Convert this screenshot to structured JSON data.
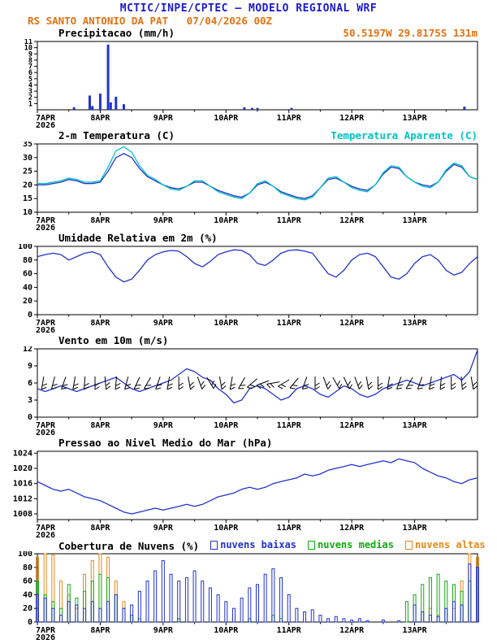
{
  "header": {
    "title": "MCTIC/INPE/CPTEC — MODELO REGIONAL WRF",
    "subtitle": "RS SANTO ANTONIO DA PAT   07/04/2026 00Z",
    "location": "50.5197W 29.8175S 131m"
  },
  "colors": {
    "header_blue": "#1a1acd",
    "orange": "#e07212",
    "line_blue": "#2233cc",
    "cyan": "#00c3c3",
    "green": "#11aa11",
    "cloud_orange": "#e2891e",
    "black": "#000000"
  },
  "time_axis": {
    "range": [
      0,
      168
    ],
    "tick_hours": [
      0,
      24,
      48,
      72,
      96,
      120,
      144
    ],
    "tick_labels": [
      "7APR",
      "8APR",
      "9APR",
      "10APR",
      "11APR",
      "12APR",
      "13APR"
    ],
    "year": "2026",
    "sample_hours": [
      0,
      3,
      6,
      9,
      12,
      15,
      18,
      21,
      24,
      27,
      30,
      33,
      36,
      39,
      42,
      45,
      48,
      51,
      54,
      57,
      60,
      63,
      66,
      69,
      72,
      75,
      78,
      81,
      84,
      87,
      90,
      93,
      96,
      99,
      102,
      105,
      108,
      111,
      114,
      117,
      120,
      123,
      126,
      129,
      132,
      135,
      138,
      141,
      144,
      147,
      150,
      153,
      156,
      159,
      162,
      165,
      168
    ]
  },
  "chart_data": [
    {
      "type": "bar",
      "title": "Precipitacao (mm/h)",
      "ylim": [
        0,
        11
      ],
      "yticks": [
        1,
        2,
        3,
        4,
        5,
        6,
        7,
        8,
        9,
        10,
        11
      ],
      "bar_color": "#2233cc",
      "x_hours": [
        14,
        20,
        21,
        24,
        27,
        28,
        30,
        33,
        79,
        82,
        84,
        97,
        163
      ],
      "values": [
        0.4,
        2.3,
        0.6,
        2.6,
        10.5,
        1.2,
        2.1,
        0.9,
        0.4,
        0.3,
        0.3,
        0.3,
        0.5
      ]
    },
    {
      "type": "line",
      "title": "2-m Temperatura (C)",
      "ylim": [
        10,
        35
      ],
      "yticks": [
        10,
        15,
        20,
        25,
        30,
        35
      ],
      "series": [
        {
          "name": "2-m Temperatura (C)",
          "color": "#2233cc",
          "values": [
            20,
            20,
            20.5,
            21,
            22,
            21.5,
            20.5,
            20.5,
            21,
            25,
            30,
            31.5,
            30,
            26,
            23,
            21.5,
            20,
            19,
            18.5,
            19.5,
            21,
            21,
            19.5,
            18,
            17,
            16,
            15.5,
            17,
            20,
            21,
            19.5,
            17.5,
            16.5,
            15.5,
            15,
            16,
            19,
            22,
            22.5,
            21,
            19.5,
            18.5,
            18,
            20,
            24,
            26.5,
            26,
            23,
            21,
            20,
            19.5,
            21,
            25,
            27.5,
            26.5,
            23,
            22
          ]
        },
        {
          "name": "Temperatura Aparente (C)",
          "color": "#00c3c3",
          "values": [
            20.5,
            20.5,
            21,
            21.5,
            22.5,
            22,
            21,
            21,
            21.5,
            26.5,
            32.5,
            34,
            32,
            27,
            23.5,
            22,
            20,
            18.5,
            18,
            19.5,
            21.5,
            21.5,
            19.5,
            17.5,
            16.5,
            15.5,
            15,
            17,
            20.5,
            21.5,
            19.5,
            17,
            16,
            15,
            14.5,
            15.5,
            19,
            22.5,
            23,
            21,
            19,
            18,
            17.5,
            20,
            24.5,
            27,
            26.5,
            23,
            21,
            19.5,
            19,
            21,
            25.5,
            28,
            27,
            23,
            22
          ]
        }
      ]
    },
    {
      "type": "line",
      "title": "Umidade Relativa em 2m (%)",
      "ylim": [
        0,
        100
      ],
      "yticks": [
        0,
        20,
        40,
        60,
        80,
        100
      ],
      "series": [
        {
          "name": "Umidade Relativa em 2m (%)",
          "color": "#2233cc",
          "values": [
            85,
            88,
            90,
            88,
            80,
            85,
            90,
            92,
            88,
            70,
            55,
            48,
            52,
            65,
            80,
            88,
            92,
            94,
            93,
            85,
            75,
            70,
            78,
            88,
            92,
            95,
            94,
            88,
            75,
            72,
            80,
            90,
            94,
            95,
            93,
            90,
            75,
            60,
            55,
            65,
            80,
            88,
            90,
            85,
            70,
            55,
            52,
            60,
            75,
            85,
            88,
            80,
            65,
            58,
            62,
            75,
            85
          ]
        }
      ]
    },
    {
      "type": "wind",
      "title": "Vento em 10m (m/s)",
      "ylim": [
        0,
        12
      ],
      "yticks": [
        0,
        3,
        6,
        9,
        12
      ],
      "series": [
        {
          "name": "Vento em 10m (m/s)",
          "color": "#2233cc",
          "values": [
            5,
            4.5,
            5,
            5.5,
            5,
            4.5,
            5,
            5.5,
            6,
            6.5,
            7,
            6,
            5,
            4.5,
            5,
            5.5,
            6,
            6.5,
            7.5,
            8.5,
            8,
            7,
            6.5,
            5,
            4,
            2.5,
            3,
            5,
            5.5,
            5,
            4,
            3,
            3.5,
            5,
            5.5,
            5,
            4,
            3.5,
            4.5,
            5.5,
            5,
            4,
            3.5,
            4,
            5,
            5.5,
            6,
            6.5,
            6,
            5.5,
            6,
            6.5,
            7,
            7.5,
            6.5,
            8,
            11.8
          ]
        }
      ],
      "barbs": {
        "y_value": 6,
        "color": "#000000",
        "x_hours": [
          2,
          6,
          10,
          14,
          18,
          22,
          26,
          30,
          34,
          38,
          42,
          46,
          50,
          54,
          58,
          62,
          66,
          70,
          74,
          78,
          82,
          86,
          90,
          94,
          98,
          102,
          106,
          110,
          114,
          118,
          122,
          126,
          130,
          134,
          138,
          142,
          146,
          150,
          154,
          158,
          162,
          166
        ],
        "dir_deg": [
          100,
          105,
          110,
          100,
          95,
          90,
          85,
          95,
          105,
          115,
          120,
          110,
          100,
          90,
          80,
          70,
          60,
          80,
          100,
          120,
          140,
          160,
          170,
          150,
          130,
          110,
          90,
          70,
          60,
          65,
          70,
          80,
          90,
          100,
          110,
          120,
          110,
          100,
          95,
          90,
          85,
          80
        ]
      }
    },
    {
      "type": "line",
      "title": "Pressao ao Nivel Medio do Mar (hPa)",
      "ylim": [
        1006.5,
        1024.5
      ],
      "yticks": [
        1008,
        1012,
        1016,
        1020,
        1024
      ],
      "series": [
        {
          "name": "Pressao ao Nivel Medio do Mar (hPa)",
          "color": "#2233cc",
          "values": [
            1016.5,
            1015.5,
            1014.5,
            1014,
            1014.5,
            1013.5,
            1012.5,
            1012,
            1011.5,
            1010.5,
            1009.5,
            1008.5,
            1008,
            1008.5,
            1009,
            1009.5,
            1009,
            1009.5,
            1010,
            1010.5,
            1010,
            1010.5,
            1011.5,
            1012.5,
            1013,
            1013.5,
            1014.5,
            1015,
            1014.5,
            1015,
            1016,
            1016.5,
            1017,
            1017.5,
            1018.5,
            1018,
            1018.5,
            1019.5,
            1020,
            1020.5,
            1021,
            1020.5,
            1021,
            1021.5,
            1022,
            1021.5,
            1022.5,
            1022,
            1021.5,
            1020,
            1019,
            1018,
            1017.5,
            1016.5,
            1016,
            1017,
            1017.5
          ]
        }
      ]
    },
    {
      "type": "cloudbar",
      "title": "Cobertura de Nuvens (%)",
      "ylim": [
        0,
        100
      ],
      "yticks": [
        0,
        20,
        40,
        60,
        80,
        100
      ],
      "series": [
        {
          "name": "nuvens baixas",
          "color": "#2233cc",
          "values": [
            40,
            35,
            20,
            10,
            30,
            25,
            20,
            30,
            20,
            30,
            40,
            20,
            25,
            45,
            60,
            75,
            90,
            70,
            60,
            65,
            75,
            60,
            50,
            40,
            30,
            20,
            35,
            50,
            55,
            70,
            78,
            65,
            40,
            20,
            15,
            18,
            10,
            5,
            8,
            5,
            3,
            5,
            2,
            0,
            3,
            0,
            2,
            0,
            25,
            15,
            10,
            8,
            20,
            30,
            25,
            85,
            80
          ]
        },
        {
          "name": "nuvens medias",
          "color": "#11aa11",
          "values": [
            60,
            40,
            30,
            20,
            55,
            35,
            45,
            60,
            70,
            65,
            40,
            20,
            10,
            5,
            0,
            0,
            0,
            0,
            5,
            0,
            0,
            0,
            0,
            0,
            0,
            0,
            0,
            5,
            0,
            0,
            10,
            5,
            0,
            0,
            0,
            0,
            0,
            0,
            0,
            0,
            0,
            0,
            0,
            0,
            0,
            0,
            0,
            30,
            40,
            55,
            65,
            70,
            60,
            55,
            45,
            60,
            50
          ]
        },
        {
          "name": "nuvens altas",
          "color": "#e2891e",
          "values": [
            95,
            100,
            98,
            60,
            40,
            20,
            70,
            90,
            100,
            95,
            60,
            30,
            10,
            0,
            0,
            0,
            0,
            0,
            0,
            0,
            0,
            0,
            0,
            0,
            0,
            0,
            0,
            0,
            0,
            0,
            0,
            0,
            0,
            0,
            0,
            0,
            0,
            0,
            0,
            0,
            0,
            0,
            0,
            0,
            0,
            0,
            0,
            0,
            0,
            0,
            20,
            10,
            0,
            20,
            60,
            100,
            95
          ]
        }
      ]
    }
  ]
}
